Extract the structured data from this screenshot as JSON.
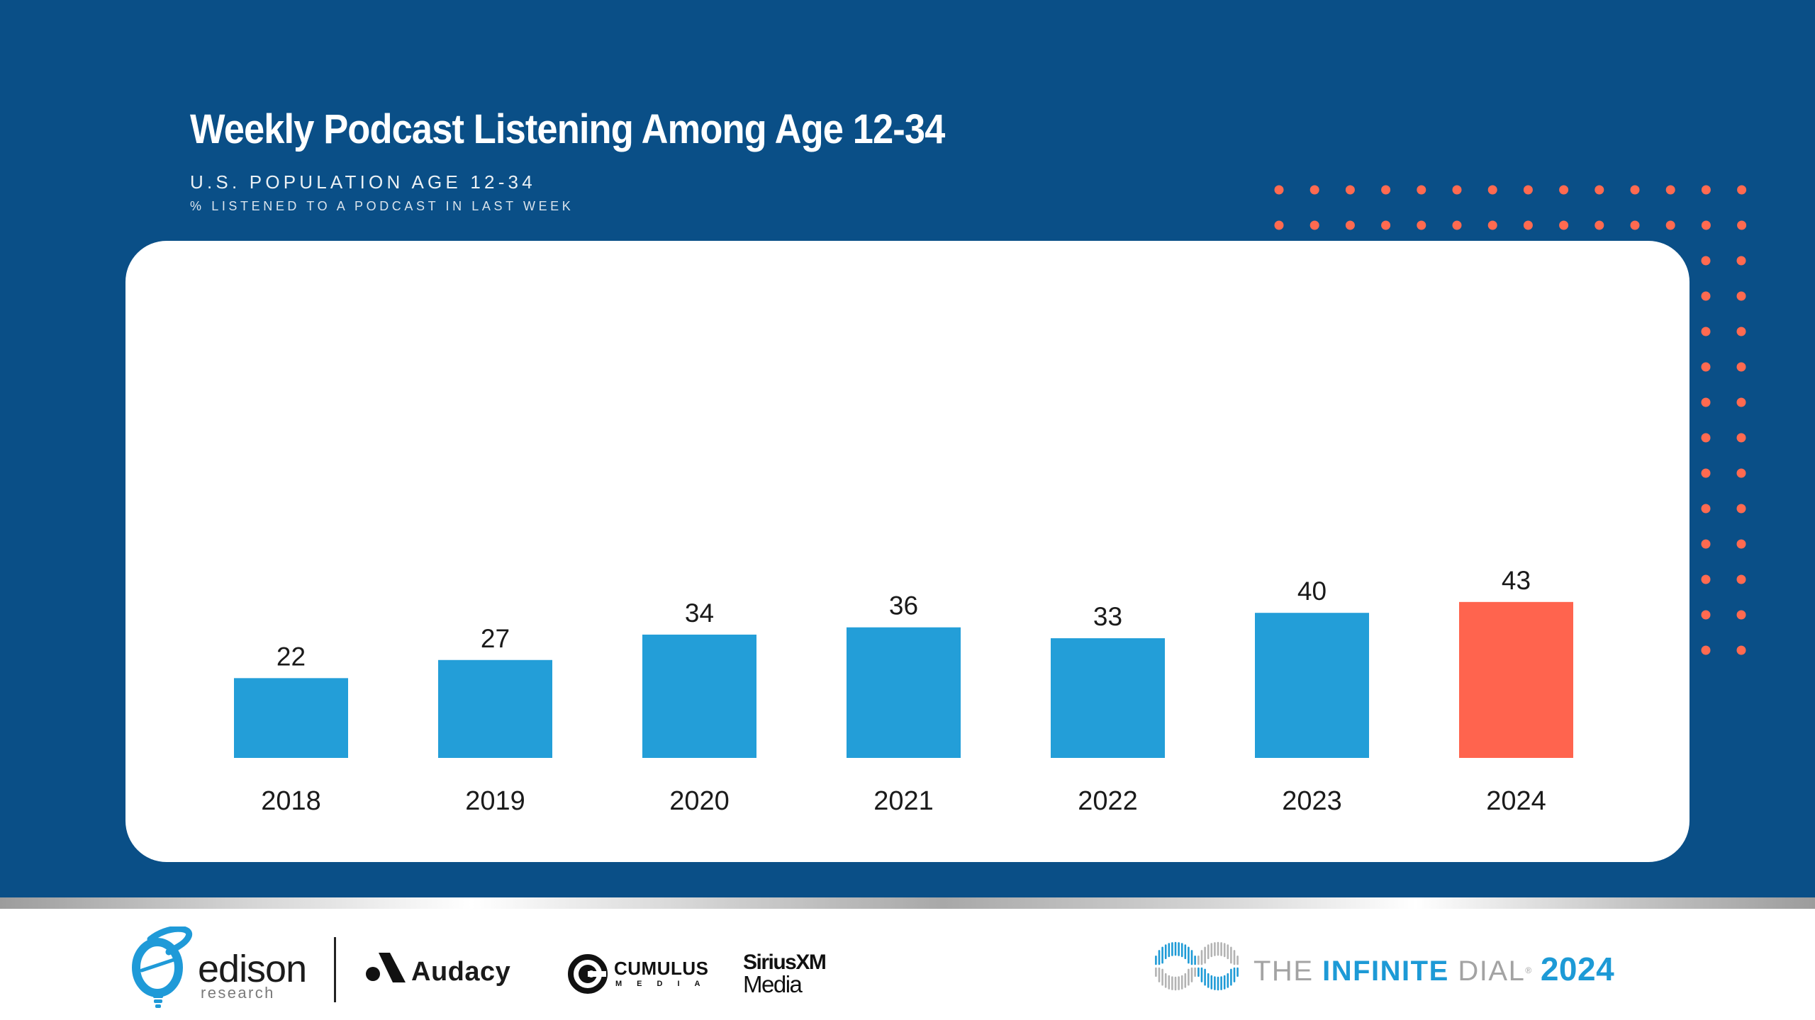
{
  "header": {
    "title": "Weekly Podcast Listening Among Age 12-34",
    "subtitle_population": "U.S. POPULATION AGE 12-34",
    "subtitle_measure": "% LISTENED TO A PODCAST IN LAST WEEK"
  },
  "colors": {
    "background_blue": "#0a4f87",
    "bar_blue": "#239ed8",
    "highlight_coral": "#ff644e",
    "dot_coral": "#ff6a50"
  },
  "chart_data": {
    "type": "bar",
    "title": "Weekly Podcast Listening Among Age 12-34",
    "subtitle": "U.S. POPULATION AGE 12-34 — % LISTENED TO A PODCAST IN LAST WEEK",
    "xlabel": "",
    "ylabel": "% listened to a podcast in last week",
    "categories": [
      "2018",
      "2019",
      "2020",
      "2021",
      "2022",
      "2023",
      "2024"
    ],
    "values": [
      22,
      27,
      34,
      36,
      33,
      40,
      43
    ],
    "highlight_index": 6,
    "ylim": [
      0,
      100
    ],
    "grid": false,
    "legend": "none",
    "data_labels": true
  },
  "footer": {
    "edison": {
      "name": "edison",
      "sub": "research"
    },
    "partners": [
      {
        "name": "Audacy"
      },
      {
        "name": "CUMULUS",
        "sub": "MEDIA"
      },
      {
        "name": "SiriusXM",
        "sub": "Media"
      }
    ],
    "brand": {
      "the": "THE",
      "infinite": "INFINITE",
      "dial": "DIAL",
      "reg": "®",
      "year": "2024"
    }
  }
}
